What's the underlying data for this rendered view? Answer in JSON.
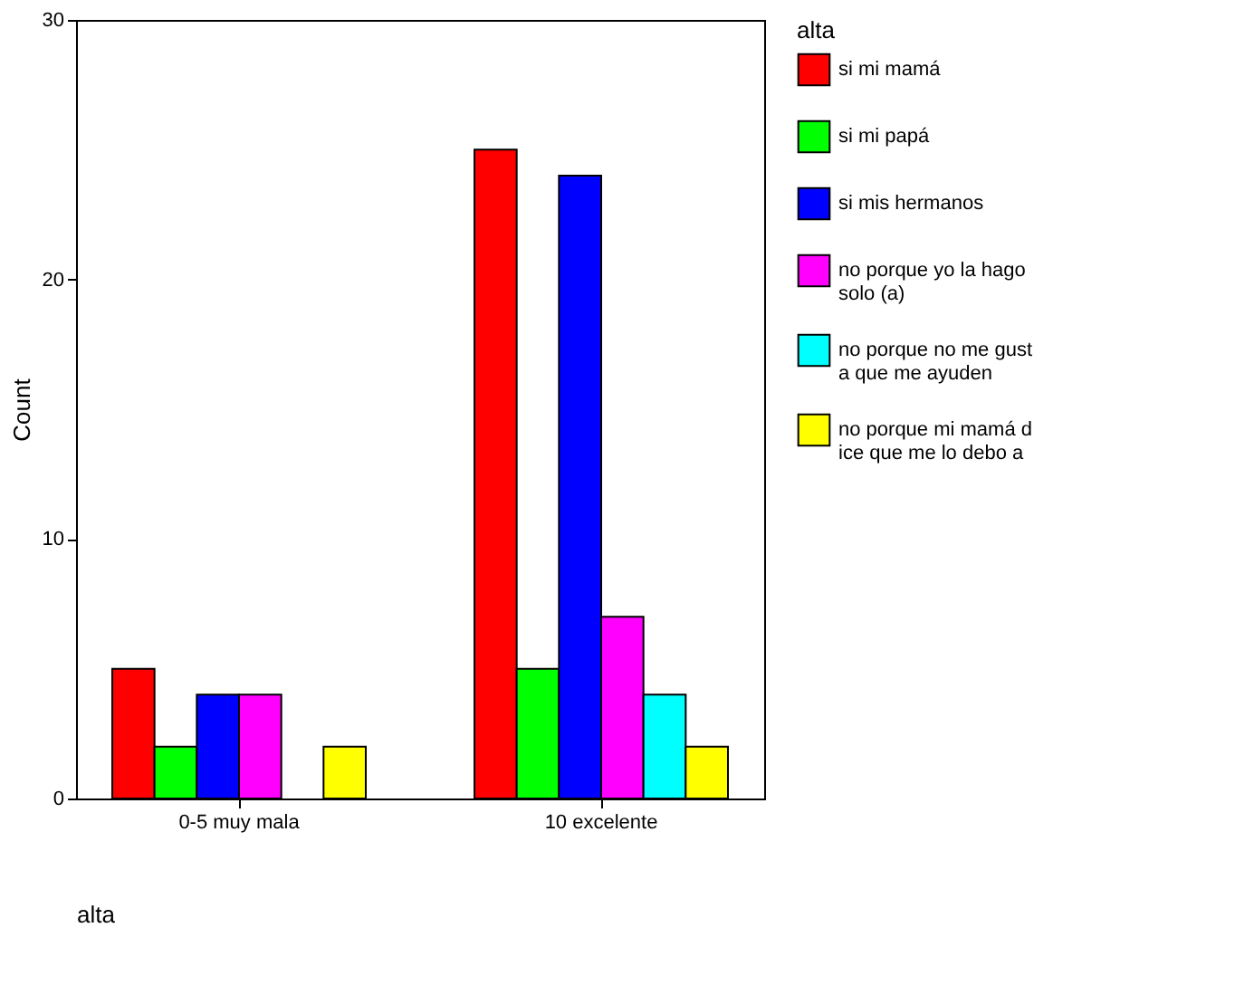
{
  "chart_data": {
    "type": "bar",
    "xlabel": "alta",
    "ylabel": "Count",
    "legend_title": "alta",
    "categories": [
      "0-5 muy mala",
      "10 excelente"
    ],
    "series": [
      {
        "name": "si mi mamá",
        "color": "#ff0000",
        "values": [
          5,
          25
        ]
      },
      {
        "name": "si mi papá",
        "color": "#00ff00",
        "values": [
          2,
          5
        ]
      },
      {
        "name": "si mis hermanos",
        "color": "#0000ff",
        "values": [
          4,
          24
        ]
      },
      {
        "name": "no porque yo la hago solo (a)",
        "color": "#ff00ff",
        "values": [
          4,
          7
        ]
      },
      {
        "name": "no porque no me gusta que me ayuden",
        "color": "#00ffff",
        "values": [
          null,
          4
        ]
      },
      {
        "name": "no  porque mi mamá dice que me lo debo a",
        "color": "#ffff00",
        "values": [
          2,
          2
        ]
      }
    ],
    "ylim": [
      0,
      30
    ],
    "yticks": [
      0,
      10,
      20,
      30
    ],
    "grid": false,
    "legend": "right"
  }
}
